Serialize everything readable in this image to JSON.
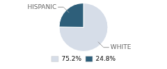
{
  "chart_data": {
    "type": "pie",
    "categories": [
      "WHITE",
      "HISPANIC"
    ],
    "values": [
      75.2,
      24.8
    ],
    "value_labels": [
      "75.2%",
      "24.8%"
    ],
    "colors": [
      "#d6dde8",
      "#2e5f7a"
    ],
    "legend": "bottom"
  }
}
